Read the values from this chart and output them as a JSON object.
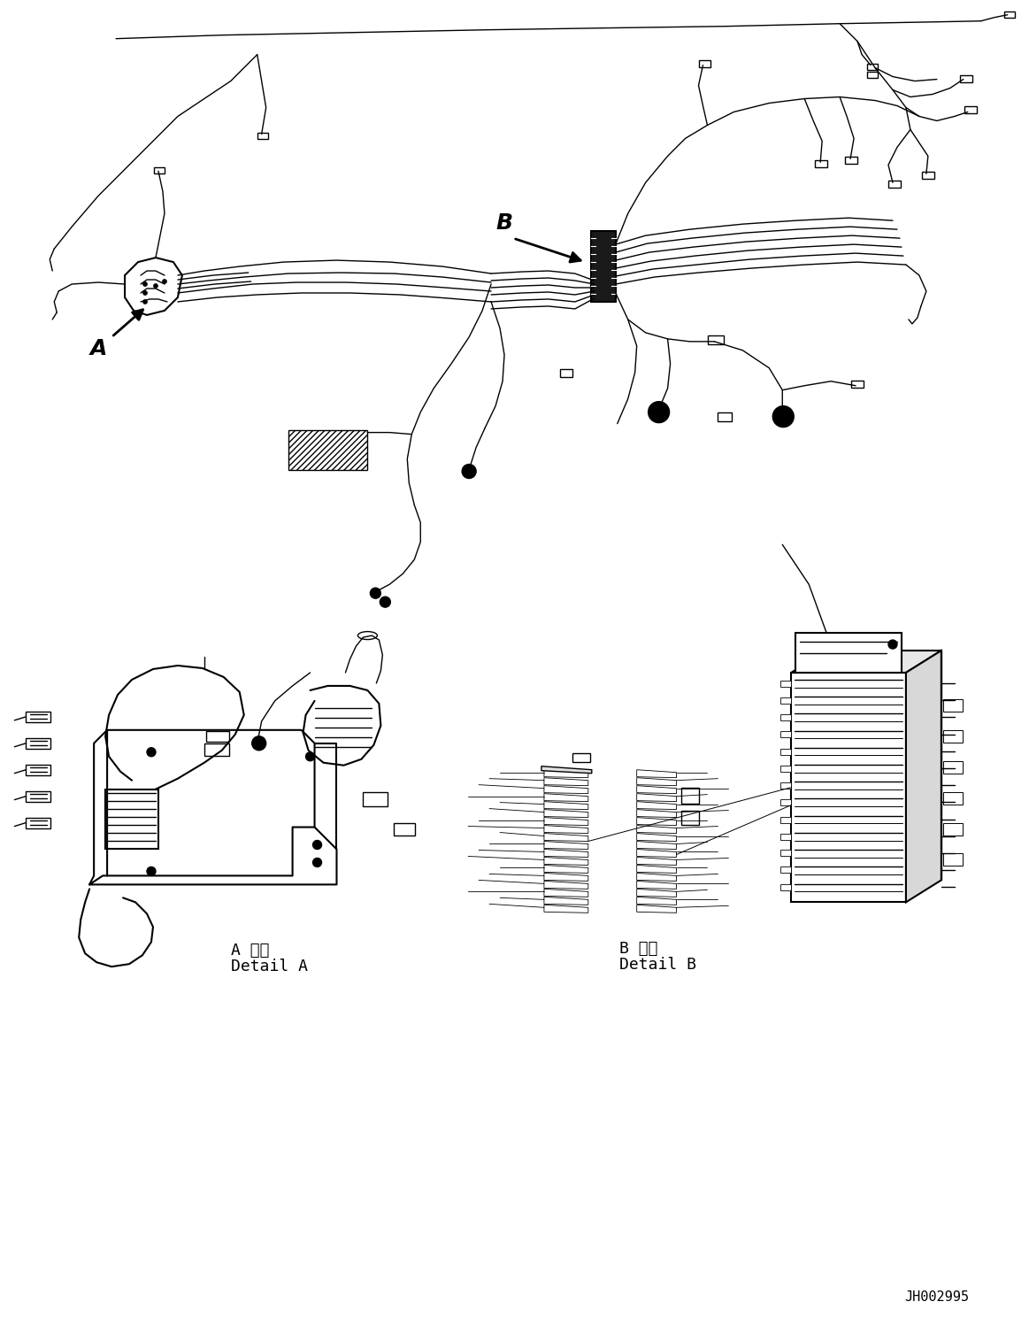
{
  "part_number": "JH002995",
  "detail_a_label_jp": "A 詳細",
  "detail_a_label_en": "Detail A",
  "detail_b_label_jp": "B 詳細",
  "detail_b_label_en": "Detail B",
  "label_A": "A",
  "label_B": "B",
  "bg_color": "#ffffff",
  "line_color": "#000000",
  "fig_width": 11.63,
  "fig_height": 14.88,
  "dpi": 100
}
